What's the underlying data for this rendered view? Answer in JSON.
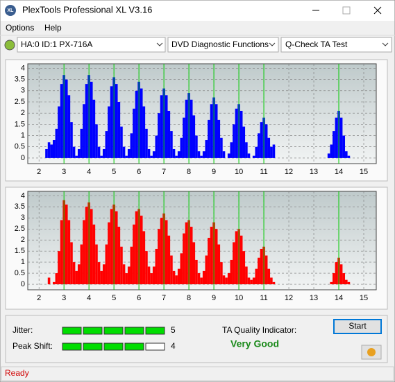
{
  "window": {
    "icon": "XL",
    "title": "PlexTools Professional XL V3.16"
  },
  "menu": [
    "Options",
    "Help"
  ],
  "toolbar": {
    "drive": "HA:0 ID:1  PX-716A",
    "function": "DVD Diagnostic Functions",
    "test": "Q-Check TA Test"
  },
  "charts": [
    {
      "type": "bar",
      "color": "#0000ff",
      "grid": true,
      "xlim": [
        1.55,
        15.5
      ],
      "ylim": [
        -0.25,
        4.2
      ],
      "xticks": [
        2,
        3,
        4,
        5,
        6,
        7,
        8,
        9,
        10,
        11,
        12,
        13,
        14,
        15
      ],
      "yticks": [
        0,
        0.5,
        1,
        1.5,
        2,
        2.5,
        3,
        3.5,
        4
      ],
      "reference_lines": [
        3,
        4,
        5,
        6,
        7,
        8,
        9,
        10,
        11,
        14
      ],
      "reference_color": "#00cc00",
      "x": [
        2.3,
        2.4,
        2.5,
        2.6,
        2.7,
        2.8,
        2.9,
        3,
        3.1,
        3.2,
        3.3,
        3.4,
        3.5,
        3.6,
        3.7,
        3.8,
        3.9,
        4,
        4.1,
        4.2,
        4.3,
        4.4,
        4.5,
        4.6,
        4.7,
        4.8,
        4.9,
        5,
        5.1,
        5.2,
        5.3,
        5.4,
        5.5,
        5.6,
        5.7,
        5.8,
        5.9,
        6,
        6.1,
        6.2,
        6.3,
        6.4,
        6.5,
        6.6,
        6.7,
        6.8,
        6.9,
        7,
        7.1,
        7.2,
        7.3,
        7.4,
        7.5,
        7.6,
        7.7,
        7.8,
        7.9,
        8,
        8.1,
        8.2,
        8.3,
        8.4,
        8.5,
        8.6,
        8.7,
        8.8,
        8.9,
        9,
        9.1,
        9.2,
        9.3,
        9.4,
        9.5,
        9.6,
        9.7,
        9.8,
        9.9,
        10,
        10.1,
        10.2,
        10.3,
        10.4,
        10.5,
        10.6,
        10.7,
        10.8,
        10.9,
        11,
        11.1,
        11.2,
        11.3,
        11.4,
        11.5,
        11.6,
        11.7,
        11.8,
        11.9,
        12,
        12.1,
        12.2,
        12.3,
        12.4,
        12.5,
        12.6,
        12.7,
        12.8,
        12.9,
        13,
        13.1,
        13.2,
        13.3,
        13.4,
        13.5,
        13.6,
        13.7,
        13.8,
        13.9,
        14,
        14.1,
        14.2,
        14.3,
        14.4,
        14.5
      ],
      "values": [
        0.4,
        0.7,
        0.6,
        0.8,
        1.3,
        2.3,
        3.3,
        3.7,
        3.5,
        2.8,
        1.6,
        0.5,
        0.1,
        0.4,
        1.3,
        2.4,
        3.3,
        3.7,
        3.4,
        2.6,
        1.5,
        0.5,
        0.1,
        0.4,
        1.2,
        2.3,
        3.2,
        3.6,
        3.3,
        2.5,
        1.4,
        0.5,
        0.1,
        0.4,
        1.1,
        2.2,
        3,
        3.4,
        3.1,
        2.3,
        1.3,
        0.4,
        0.1,
        0.3,
        1,
        2,
        2.8,
        3.1,
        2.8,
        2.1,
        1.2,
        0.4,
        0.1,
        0.3,
        0.9,
        1.8,
        2.6,
        2.9,
        2.6,
        1.9,
        1,
        0.3,
        0.1,
        0.3,
        0.8,
        1.7,
        2.4,
        2.7,
        2.4,
        1.7,
        0.9,
        0.3,
        0,
        0.2,
        0.7,
        1.5,
        2.2,
        2.4,
        2.1,
        1.4,
        0.7,
        0.2,
        0,
        0.1,
        0.5,
        1.1,
        1.6,
        1.8,
        1.5,
        0.9,
        0.5,
        0.6,
        0,
        0,
        0,
        0,
        0,
        0,
        0,
        0,
        0,
        0,
        0,
        0,
        0,
        0,
        0,
        0,
        0,
        0,
        0,
        0,
        0,
        0.2,
        0.6,
        1.2,
        1.8,
        2.1,
        1.8,
        1,
        0.3,
        0.1,
        0
      ]
    },
    {
      "type": "bar",
      "color": "#ff0000",
      "grid": true,
      "xlim": [
        1.55,
        15.5
      ],
      "ylim": [
        -0.25,
        4.2
      ],
      "xticks": [
        2,
        3,
        4,
        5,
        6,
        7,
        8,
        9,
        10,
        11,
        12,
        13,
        14,
        15
      ],
      "yticks": [
        0,
        0.5,
        1,
        1.5,
        2,
        2.5,
        3,
        3.5,
        4
      ],
      "reference_lines": [
        3,
        4,
        5,
        6,
        7,
        8,
        9,
        10,
        11,
        14
      ],
      "reference_color": "#00cc00",
      "x": [
        2.3,
        2.4,
        2.5,
        2.6,
        2.7,
        2.8,
        2.9,
        3,
        3.1,
        3.2,
        3.3,
        3.4,
        3.5,
        3.6,
        3.7,
        3.8,
        3.9,
        4,
        4.1,
        4.2,
        4.3,
        4.4,
        4.5,
        4.6,
        4.7,
        4.8,
        4.9,
        5,
        5.1,
        5.2,
        5.3,
        5.4,
        5.5,
        5.6,
        5.7,
        5.8,
        5.9,
        6,
        6.1,
        6.2,
        6.3,
        6.4,
        6.5,
        6.6,
        6.7,
        6.8,
        6.9,
        7,
        7.1,
        7.2,
        7.3,
        7.4,
        7.5,
        7.6,
        7.7,
        7.8,
        7.9,
        8,
        8.1,
        8.2,
        8.3,
        8.4,
        8.5,
        8.6,
        8.7,
        8.8,
        8.9,
        9,
        9.1,
        9.2,
        9.3,
        9.4,
        9.5,
        9.6,
        9.7,
        9.8,
        9.9,
        10,
        10.1,
        10.2,
        10.3,
        10.4,
        10.5,
        10.6,
        10.7,
        10.8,
        10.9,
        11,
        11.1,
        11.2,
        11.3,
        11.4,
        11.5,
        11.6,
        11.7,
        11.8,
        11.9,
        12,
        12.1,
        12.2,
        12.3,
        12.4,
        12.5,
        12.6,
        12.7,
        12.8,
        12.9,
        13,
        13.1,
        13.2,
        13.3,
        13.4,
        13.5,
        13.6,
        13.7,
        13.8,
        13.9,
        14,
        14.1,
        14.2,
        14.3,
        14.4,
        14.5
      ],
      "values": [
        0,
        0.3,
        0,
        0.1,
        0.5,
        1.5,
        2.9,
        3.8,
        3.6,
        2.9,
        1.9,
        1,
        0.6,
        0.9,
        1.8,
        2.9,
        3.5,
        3.7,
        3.4,
        2.7,
        1.8,
        1,
        0.6,
        0.9,
        1.8,
        2.8,
        3.4,
        3.6,
        3.3,
        2.6,
        1.7,
        0.9,
        0.5,
        0.8,
        1.7,
        2.7,
        3.3,
        3.4,
        3.1,
        2.4,
        1.5,
        0.8,
        0.5,
        0.8,
        1.6,
        2.5,
        3,
        3.2,
        2.9,
        2.2,
        1.3,
        0.6,
        0.4,
        0.7,
        1.4,
        2.3,
        2.8,
        2.9,
        2.6,
        1.9,
        1.1,
        0.5,
        0.3,
        0.6,
        1.3,
        2.1,
        2.6,
        2.8,
        2.5,
        1.8,
        1,
        0.4,
        0.3,
        0.5,
        1.1,
        1.9,
        2.4,
        2.5,
        2.2,
        1.5,
        0.8,
        0.3,
        0.2,
        0.3,
        0.7,
        1.2,
        1.6,
        1.7,
        1.3,
        0.7,
        0.3,
        0.1,
        0,
        0,
        0,
        0,
        0,
        0,
        0,
        0,
        0,
        0,
        0,
        0,
        0,
        0,
        0,
        0,
        0,
        0,
        0,
        0,
        0,
        0,
        0.1,
        0.5,
        1,
        1.2,
        0.9,
        0.5,
        0.2,
        0.1,
        0
      ]
    }
  ],
  "results": {
    "jitter": {
      "label": "Jitter:",
      "value": 5
    },
    "peak_shift": {
      "label": "Peak Shift:",
      "value": 4
    },
    "meter_color": "#00dd00",
    "ta_quality": {
      "label": "TA Quality Indicator:",
      "value": "Very Good"
    }
  },
  "buttons": {
    "start": "Start"
  },
  "status": "Ready"
}
